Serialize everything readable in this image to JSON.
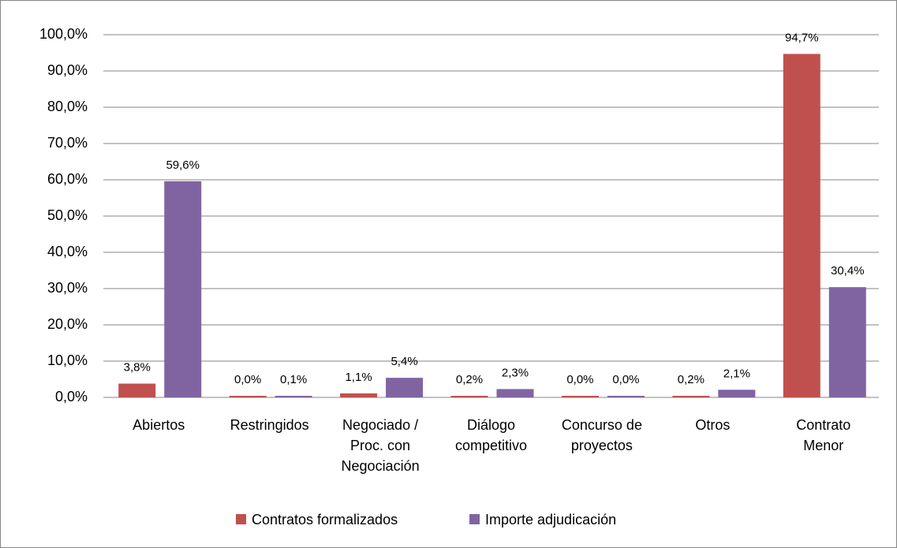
{
  "chart_data": {
    "type": "bar",
    "categories": [
      "Abiertos",
      "Restringidos",
      "Negociado / Proc. con Negociación",
      "Diálogo competitivo",
      "Concurso de proyectos",
      "Otros",
      "Contrato Menor"
    ],
    "series": [
      {
        "name": "Contratos formalizados",
        "color": "#c0504d",
        "values": [
          3.8,
          0.0,
          1.1,
          0.2,
          0.0,
          0.2,
          94.7
        ],
        "value_labels": [
          "3,8%",
          "0,0%",
          "1,1%",
          "0,2%",
          "0,0%",
          "0,2%",
          "94,7%"
        ]
      },
      {
        "name": "Importe adjudicación",
        "color": "#8064a2",
        "values": [
          59.6,
          0.1,
          5.4,
          2.3,
          0.0,
          2.1,
          30.4
        ],
        "value_labels": [
          "59,6%",
          "0,1%",
          "5,4%",
          "2,3%",
          "0,0%",
          "2,1%",
          "30,4%"
        ]
      }
    ],
    "ylim": [
      0,
      100
    ],
    "yticks": [
      {
        "value": 0,
        "label": "0,0%"
      },
      {
        "value": 10,
        "label": "10,0%"
      },
      {
        "value": 20,
        "label": "20,0%"
      },
      {
        "value": 30,
        "label": "30,0%"
      },
      {
        "value": 40,
        "label": "40,0%"
      },
      {
        "value": 50,
        "label": "50,0%"
      },
      {
        "value": 60,
        "label": "60,0%"
      },
      {
        "value": 70,
        "label": "70,0%"
      },
      {
        "value": 80,
        "label": "80,0%"
      },
      {
        "value": 90,
        "label": "90,0%"
      },
      {
        "value": 100,
        "label": "100,0%"
      }
    ],
    "grid": true,
    "legend": "bottom"
  }
}
